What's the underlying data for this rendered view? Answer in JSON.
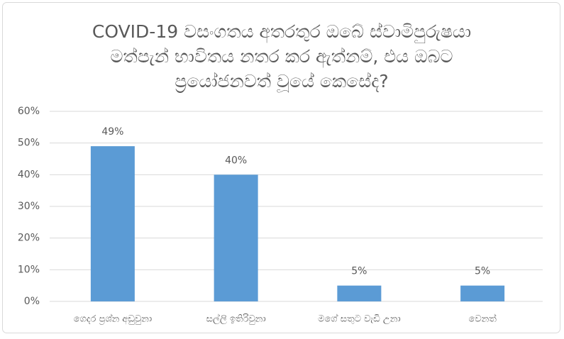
{
  "chart_data": {
    "type": "bar",
    "title": [
      "COVID-19 වසංගතය අතරතුර ඔබේ ස්වාමිපුරුෂයා",
      "මත්පැන් භාවිතය නතර කර ඇත්නම්, එය ඔබට",
      "ප්‍රයෝජනවත් වූයේ කෙසේද?"
    ],
    "categories": [
      "ගෙදර ප්‍රශ්න අඩුවුනා",
      "සල්ලි ඉතිරිවුනා",
      "මගේ සතුට වැඩි උනා",
      "වෙනත්"
    ],
    "values": [
      49,
      40,
      5,
      5
    ],
    "value_labels": [
      "49%",
      "40%",
      "5%",
      "5%"
    ],
    "color": "#5b9bd5",
    "ylim": [
      0,
      60
    ],
    "yticks": [
      {
        "value": 0,
        "label": "0%"
      },
      {
        "value": 10,
        "label": "10%"
      },
      {
        "value": 20,
        "label": "20%"
      },
      {
        "value": 30,
        "label": "30%"
      },
      {
        "value": 40,
        "label": "40%"
      },
      {
        "value": 50,
        "label": "50%"
      },
      {
        "value": 60,
        "label": "60%"
      }
    ],
    "grid": true
  }
}
